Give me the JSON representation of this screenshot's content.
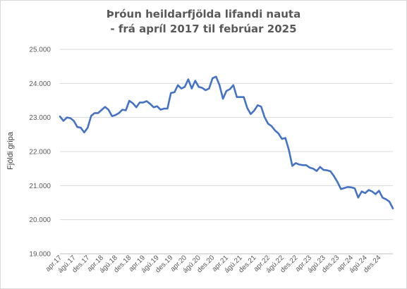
{
  "chart_data": {
    "type": "line",
    "title": [
      "Þróun heildarfjölda lifandi nauta",
      "- frá apríl 2017 til febrúar 2025"
    ],
    "xlabel": "",
    "ylabel": "Fjöldi gripa",
    "ylim": [
      19000,
      25000
    ],
    "y_ticks": [
      {
        "value": 19000,
        "label": "19.000"
      },
      {
        "value": 20000,
        "label": "20.000"
      },
      {
        "value": 21000,
        "label": "21.000"
      },
      {
        "value": 22000,
        "label": "22.000"
      },
      {
        "value": 23000,
        "label": "23.000"
      },
      {
        "value": 24000,
        "label": "24.000"
      },
      {
        "value": 25000,
        "label": "25.000"
      }
    ],
    "x_ticks": [
      {
        "month": 0,
        "label": "apr.17"
      },
      {
        "month": 4,
        "label": "ágú.17"
      },
      {
        "month": 8,
        "label": "des.17"
      },
      {
        "month": 12,
        "label": "apr.18"
      },
      {
        "month": 16,
        "label": "ágú.18"
      },
      {
        "month": 20,
        "label": "des.18"
      },
      {
        "month": 24,
        "label": "apr.19"
      },
      {
        "month": 28,
        "label": "ágú.19"
      },
      {
        "month": 32,
        "label": "des.19"
      },
      {
        "month": 36,
        "label": "apr.20"
      },
      {
        "month": 40,
        "label": "ágú.20"
      },
      {
        "month": 44,
        "label": "des.20"
      },
      {
        "month": 48,
        "label": "apr.21"
      },
      {
        "month": 52,
        "label": "ágú.21"
      },
      {
        "month": 56,
        "label": "des.21"
      },
      {
        "month": 60,
        "label": "apr.22"
      },
      {
        "month": 64,
        "label": "ágú.22"
      },
      {
        "month": 68,
        "label": "des.22"
      },
      {
        "month": 72,
        "label": "apr.23"
      },
      {
        "month": 76,
        "label": "ágú.23"
      },
      {
        "month": 80,
        "label": "des.23"
      },
      {
        "month": 84,
        "label": "apr.24"
      },
      {
        "month": 88,
        "label": "ágú.24"
      },
      {
        "month": 92,
        "label": "des.24"
      }
    ],
    "grid": true,
    "series": [
      {
        "color": "#4472c4",
        "values": [
          23030,
          22900,
          23000,
          22980,
          22900,
          22720,
          22700,
          22560,
          22700,
          23050,
          23130,
          23130,
          23220,
          23310,
          23230,
          23040,
          23070,
          23130,
          23230,
          23210,
          23490,
          23420,
          23300,
          23440,
          23440,
          23480,
          23400,
          23300,
          23330,
          23230,
          23260,
          23260,
          23720,
          23740,
          23950,
          23850,
          23900,
          24120,
          23850,
          24080,
          23900,
          23870,
          23800,
          23850,
          24150,
          24200,
          23950,
          23550,
          23780,
          23830,
          23950,
          23600,
          23600,
          23600,
          23280,
          23100,
          23200,
          23360,
          23320,
          23010,
          22820,
          22750,
          22620,
          22530,
          22370,
          22400,
          22050,
          21580,
          21660,
          21620,
          21600,
          21600,
          21530,
          21500,
          21430,
          21550,
          21460,
          21450,
          21420,
          21280,
          21110,
          20900,
          20930,
          20960,
          20950,
          20920,
          20650,
          20830,
          20780,
          20870,
          20830,
          20750,
          20850,
          20650,
          20600,
          20530,
          20330
        ]
      }
    ]
  }
}
